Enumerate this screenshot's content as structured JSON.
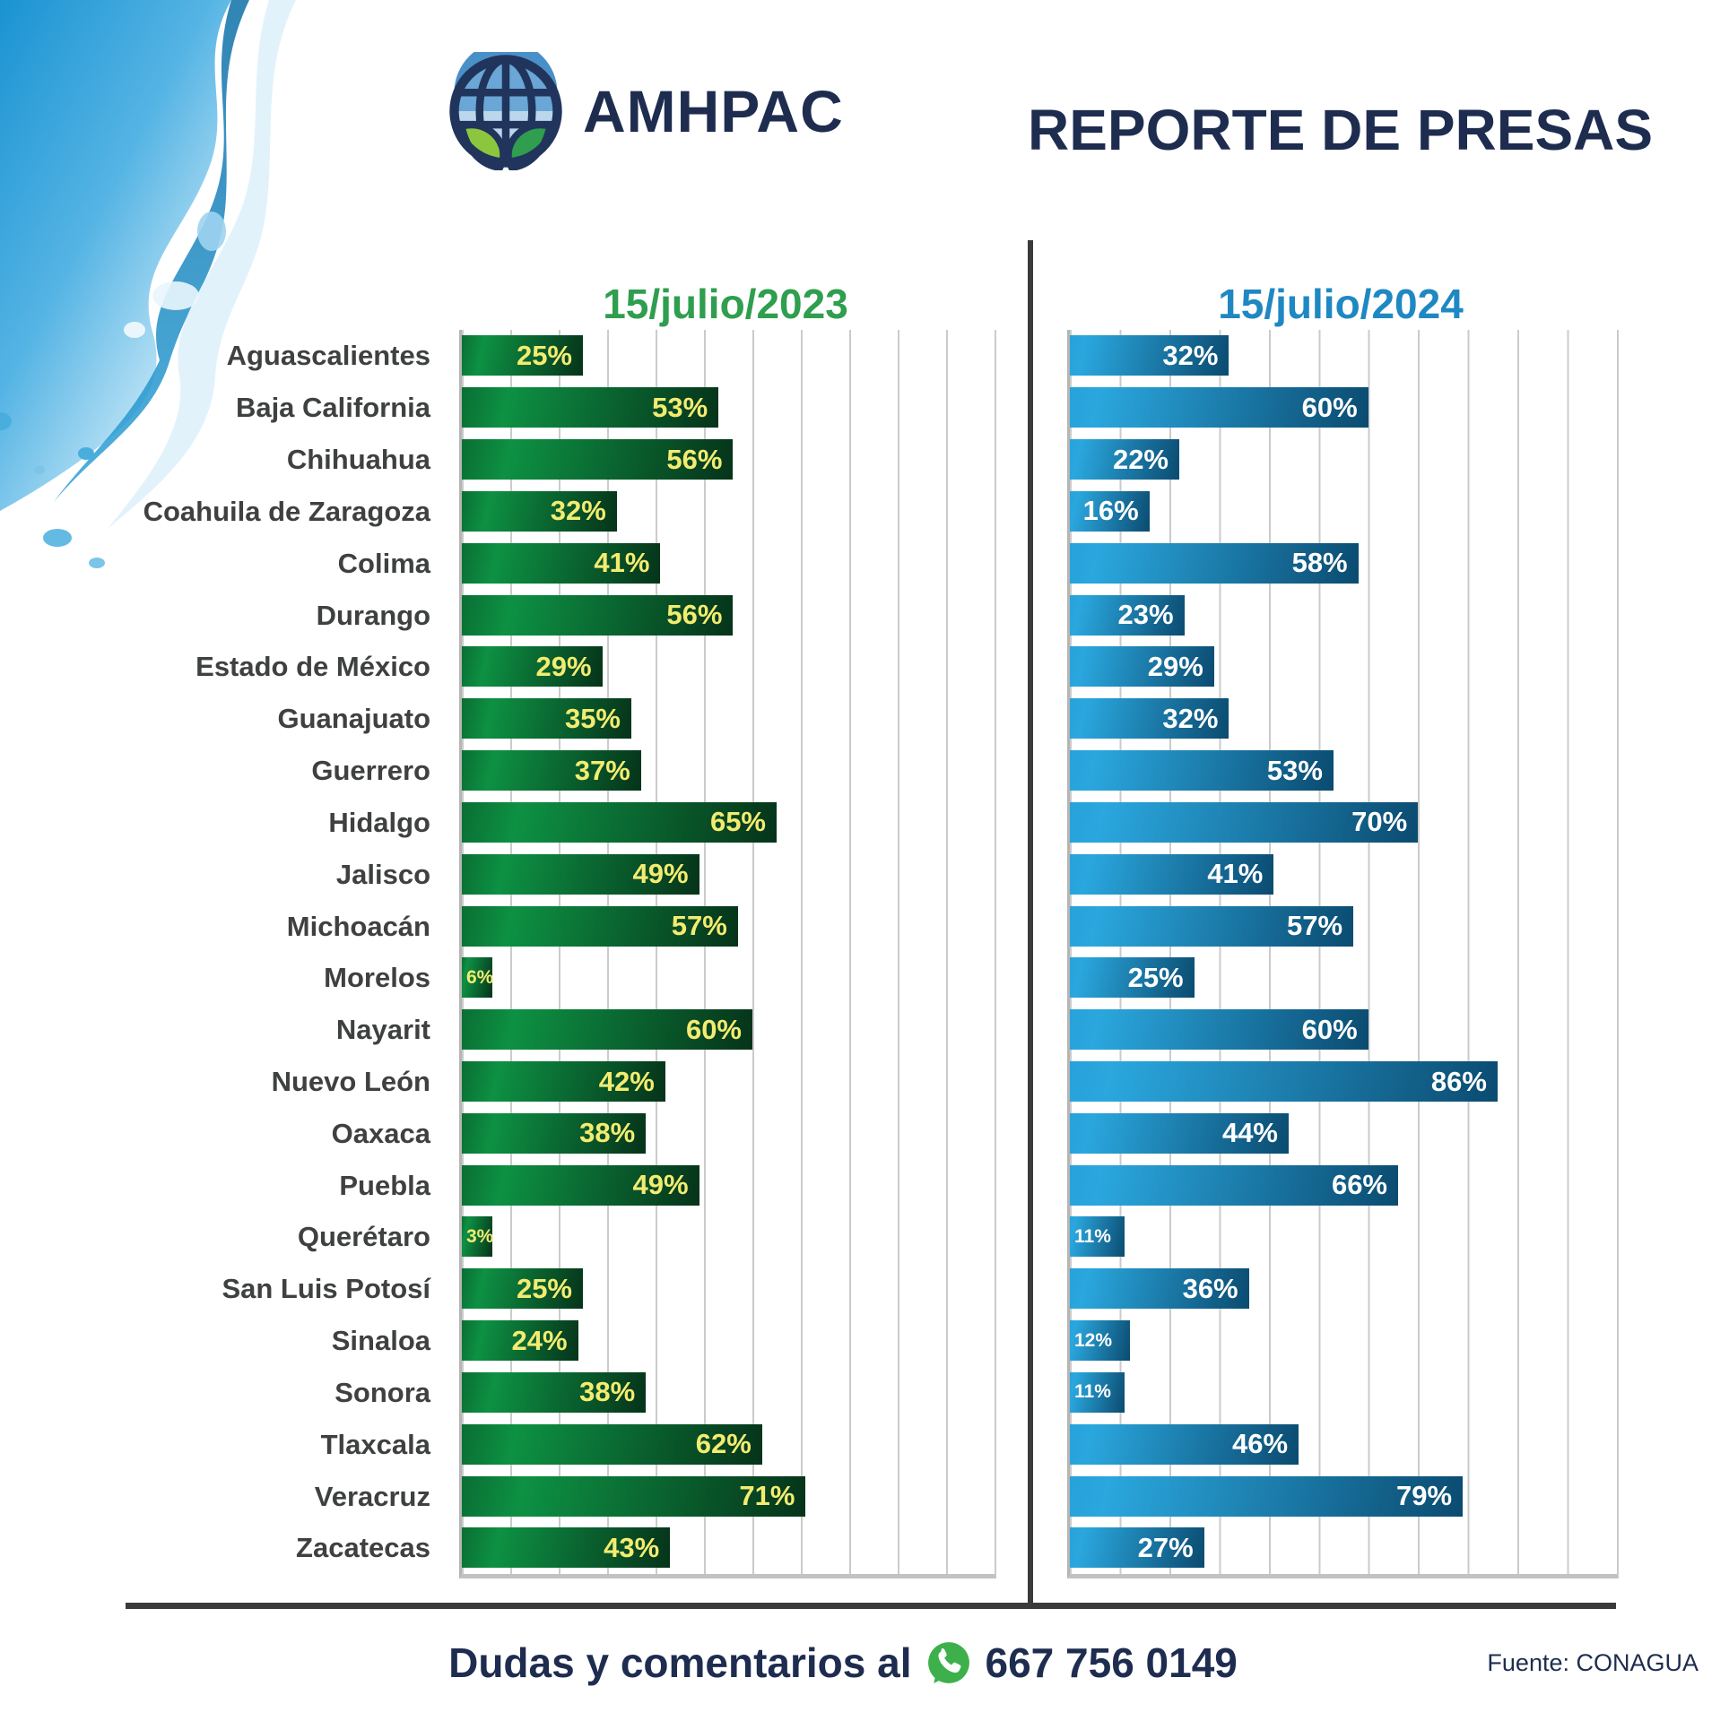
{
  "header": {
    "brand": "AMHPAC",
    "title": "REPORTE DE PRESAS"
  },
  "panels": [
    {
      "prefix": "15/julio/",
      "year": "2023",
      "color": "#2f9e4e"
    },
    {
      "prefix": "15/julio/",
      "year": "2024",
      "color": "#1f88c3"
    }
  ],
  "footer": {
    "contact_label": "Dudas y comentarios al",
    "phone": "667 756 0149",
    "source": "Fuente: CONAGUA"
  },
  "icons": {
    "logo": "amhpac-globe-leaves-logo",
    "whatsapp": "whatsapp-icon",
    "whatsapp_green": "#3db04b",
    "splash": "water-splash-graphic"
  },
  "colors": {
    "navy": "#1e2c4f",
    "label_gray": "#3f4040",
    "green_header": "#2f9e4e",
    "blue_header": "#1f88c3",
    "green_bar_start": "#0d9143",
    "green_bar_end": "#06331a",
    "blue_bar_start": "#2aa7de",
    "blue_bar_end": "#0b4b70",
    "value_yellow": "#f3ec70",
    "value_white": "#ffffff",
    "gridline": "#cbcbcb",
    "divider": "#3a3a3a"
  },
  "chart_data": {
    "type": "bar",
    "orientation": "horizontal",
    "title": "REPORTE DE PRESAS",
    "value_suffix": "%",
    "xlim": [
      0,
      110
    ],
    "gridline_step": 10,
    "grid": true,
    "categories": [
      "Aguascalientes",
      "Baja California",
      "Chihuahua",
      "Coahuila de Zaragoza",
      "Colima",
      "Durango",
      "Estado de México",
      "Guanajuato",
      "Guerrero",
      "Hidalgo",
      "Jalisco",
      "Michoacán",
      "Morelos",
      "Nayarit",
      "Nuevo León",
      "Oaxaca",
      "Puebla",
      "Querétaro",
      "San Luis Potosí",
      "Sinaloa",
      "Sonora",
      "Tlaxcala",
      "Veracruz",
      "Zacatecas"
    ],
    "series": [
      {
        "name": "15/julio/2023",
        "theme": "green",
        "values": [
          25,
          53,
          56,
          32,
          41,
          56,
          29,
          35,
          37,
          65,
          49,
          57,
          6,
          60,
          42,
          38,
          49,
          3,
          25,
          24,
          38,
          62,
          71,
          43
        ]
      },
      {
        "name": "15/julio/2024",
        "theme": "blue",
        "values": [
          32,
          60,
          22,
          16,
          58,
          23,
          29,
          32,
          53,
          70,
          41,
          57,
          25,
          60,
          86,
          44,
          66,
          11,
          36,
          12,
          11,
          46,
          79,
          27
        ]
      }
    ]
  }
}
